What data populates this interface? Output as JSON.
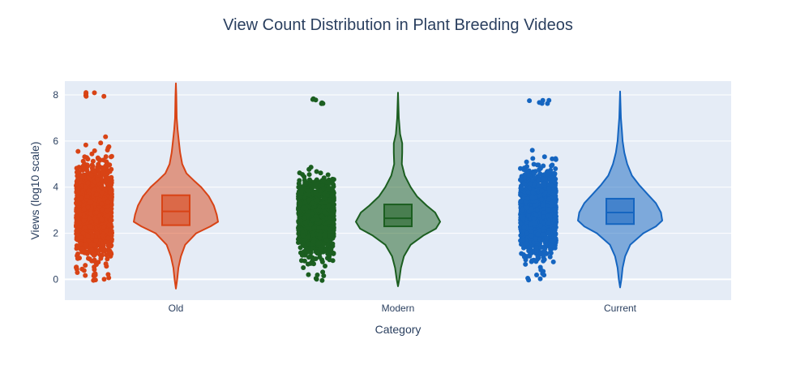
{
  "chart_data": {
    "type": "violin",
    "title": "View Count Distribution in Plant Breeding Videos",
    "xlabel": "Category",
    "ylabel": "Views (log10 scale)",
    "ylim": [
      -0.9,
      8.6
    ],
    "y_ticks": [
      0,
      2,
      4,
      6,
      8
    ],
    "categories": [
      "Old",
      "Modern",
      "Current"
    ],
    "grid": true,
    "series": [
      {
        "category": "Old",
        "color": "#d84315",
        "box": {
          "q1": 2.35,
          "median": 2.95,
          "q3": 3.65
        },
        "whiskers": [
          0.0,
          8.1
        ],
        "violin_range": [
          -0.4,
          8.5
        ],
        "density": [
          [
            -0.4,
            0.0
          ],
          [
            0.0,
            0.03
          ],
          [
            0.5,
            0.06
          ],
          [
            1.0,
            0.12
          ],
          [
            1.5,
            0.22
          ],
          [
            2.0,
            0.48
          ],
          [
            2.3,
            0.82
          ],
          [
            2.5,
            1.0
          ],
          [
            2.8,
            0.97
          ],
          [
            3.2,
            0.9
          ],
          [
            3.6,
            0.78
          ],
          [
            4.0,
            0.6
          ],
          [
            4.3,
            0.42
          ],
          [
            4.6,
            0.25
          ],
          [
            5.0,
            0.15
          ],
          [
            5.5,
            0.1
          ],
          [
            6.0,
            0.07
          ],
          [
            6.5,
            0.04
          ],
          [
            7.0,
            0.02
          ],
          [
            8.0,
            0.01
          ],
          [
            8.5,
            0.0
          ]
        ]
      },
      {
        "category": "Modern",
        "color": "#1b5e20",
        "box": {
          "q1": 2.3,
          "median": 2.65,
          "q3": 3.25
        },
        "whiskers": [
          0.0,
          7.8
        ],
        "violin_range": [
          -0.3,
          8.1
        ],
        "density": [
          [
            -0.3,
            0.0
          ],
          [
            0.0,
            0.03
          ],
          [
            0.5,
            0.07
          ],
          [
            1.0,
            0.14
          ],
          [
            1.5,
            0.3
          ],
          [
            1.9,
            0.6
          ],
          [
            2.2,
            0.9
          ],
          [
            2.5,
            1.0
          ],
          [
            2.9,
            0.88
          ],
          [
            3.2,
            0.68
          ],
          [
            3.6,
            0.45
          ],
          [
            4.0,
            0.3
          ],
          [
            4.5,
            0.16
          ],
          [
            5.0,
            0.09
          ],
          [
            5.5,
            0.1
          ],
          [
            5.9,
            0.1
          ],
          [
            6.3,
            0.05
          ],
          [
            7.0,
            0.02
          ],
          [
            8.1,
            0.0
          ]
        ]
      },
      {
        "category": "Current",
        "color": "#1565c0",
        "box": {
          "q1": 2.4,
          "median": 2.9,
          "q3": 3.5
        },
        "whiskers": [
          0.0,
          7.8
        ],
        "violin_range": [
          -0.35,
          8.15
        ],
        "density": [
          [
            -0.35,
            0.0
          ],
          [
            0.0,
            0.03
          ],
          [
            0.5,
            0.06
          ],
          [
            1.0,
            0.12
          ],
          [
            1.5,
            0.24
          ],
          [
            2.0,
            0.55
          ],
          [
            2.3,
            0.85
          ],
          [
            2.55,
            1.0
          ],
          [
            2.9,
            0.97
          ],
          [
            3.3,
            0.85
          ],
          [
            3.7,
            0.65
          ],
          [
            4.1,
            0.45
          ],
          [
            4.5,
            0.28
          ],
          [
            5.0,
            0.17
          ],
          [
            5.5,
            0.1
          ],
          [
            6.0,
            0.06
          ],
          [
            6.5,
            0.04
          ],
          [
            7.0,
            0.02
          ],
          [
            8.15,
            0.0
          ]
        ]
      }
    ]
  }
}
